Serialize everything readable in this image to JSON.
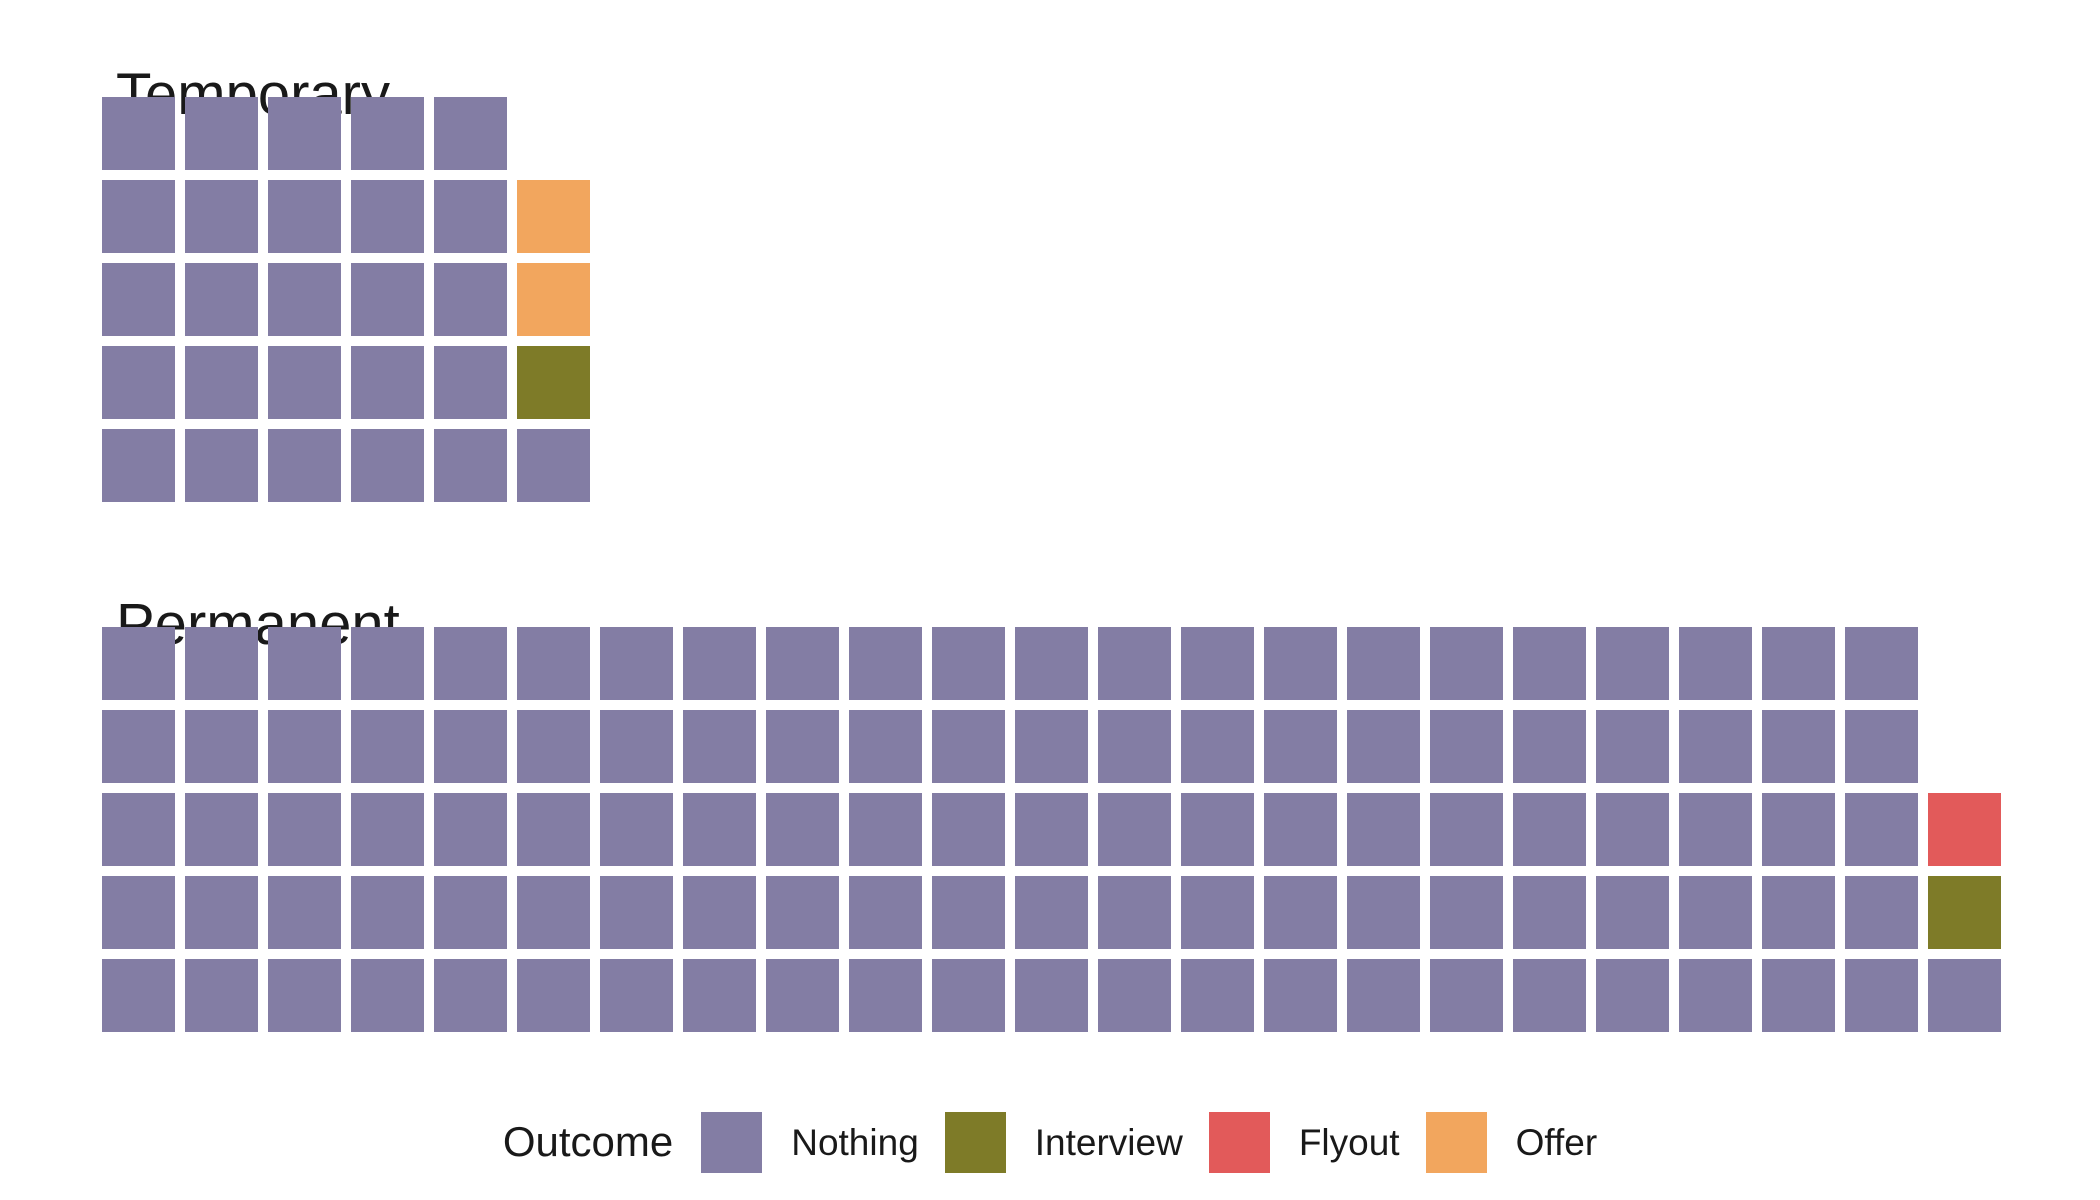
{
  "chart_data": {
    "type": "waffle",
    "legend_title": "Outcome",
    "legend_position": "bottom",
    "grid": {
      "rows": 5,
      "fill": "column-major-bottom-up",
      "note": "1 square = 1 application; columns fill left to right, each column fills bottom to top"
    },
    "categories": [
      {
        "label": "Nothing",
        "color": "#837DA4"
      },
      {
        "label": "Interview",
        "color": "#7E7B28"
      },
      {
        "label": "Flyout",
        "color": "#E25A5A"
      },
      {
        "label": "Offer",
        "color": "#F2A65E"
      }
    ],
    "facets": [
      {
        "label": "Temporary",
        "values": [
          26,
          1,
          0,
          2
        ],
        "total": 29
      },
      {
        "label": "Permanent",
        "values": [
          111,
          1,
          1,
          0
        ],
        "total": 113
      }
    ],
    "text_color": "#191919",
    "background_color": "#FFFFFF"
  }
}
